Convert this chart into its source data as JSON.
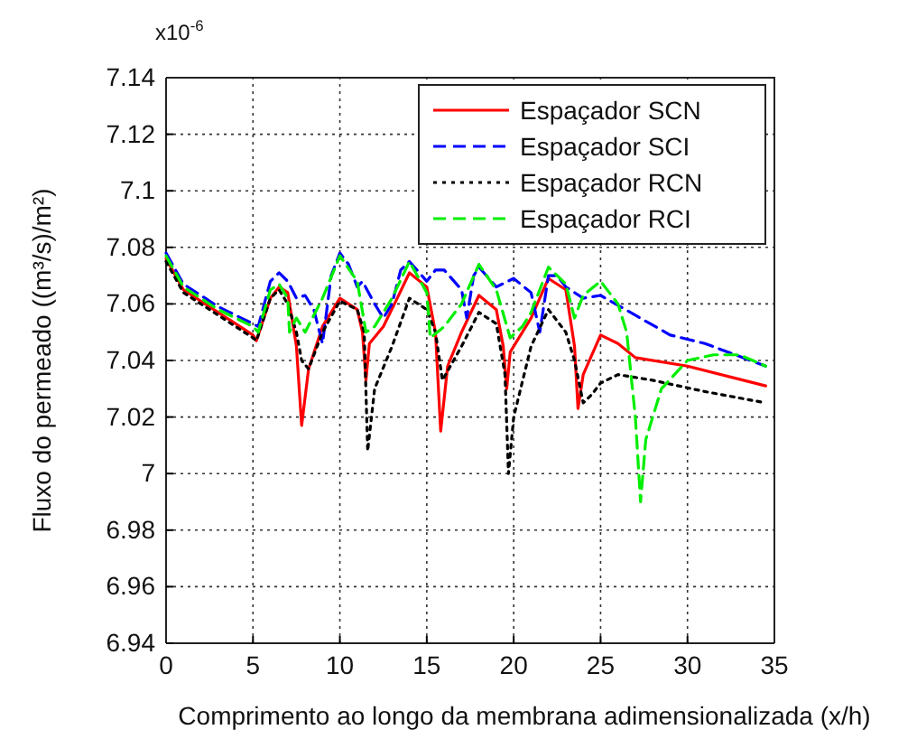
{
  "chart_data": {
    "type": "line",
    "xlabel": "Comprimento ao longo da membrana adimensionalizada (x/h)",
    "ylabel": "Fluxo do permeado ((m³/s)/m²)",
    "annotations": [
      "x10$^{-6}$"
    ],
    "xlim": [
      0,
      35
    ],
    "xticks": [
      0,
      5,
      10,
      15,
      20,
      25,
      30,
      35
    ],
    "ylim": [
      6.94,
      7.14
    ],
    "yticks": [
      6.94,
      6.96,
      6.98,
      7,
      7.02,
      7.04,
      7.06,
      7.08,
      7.1,
      7.12,
      7.14
    ],
    "grid": true,
    "legend": "top right",
    "marker": "none",
    "series": [
      {
        "name": "Espaçador SCN",
        "color": "#ff0000",
        "line_style": "solid",
        "x": [
          0,
          1,
          3,
          5,
          5.2,
          6,
          6.5,
          7,
          7.5,
          7.8,
          8.2,
          9,
          10,
          11,
          11.3,
          11.5,
          11.7,
          12.5,
          13.3,
          14,
          15,
          15.5,
          15.8,
          16.2,
          17,
          18,
          19,
          19.4,
          19.6,
          19.8,
          21,
          22,
          23,
          23.5,
          23.7,
          24,
          25,
          26,
          27,
          30,
          34.5
        ],
        "values": [
          7.076,
          7.065,
          7.057,
          7.049,
          7.047,
          7.062,
          7.066,
          7.064,
          7.045,
          7.017,
          7.037,
          7.052,
          7.062,
          7.058,
          7.05,
          7.033,
          7.046,
          7.052,
          7.062,
          7.071,
          7.066,
          7.05,
          7.015,
          7.038,
          7.05,
          7.063,
          7.058,
          7.045,
          7.03,
          7.043,
          7.055,
          7.069,
          7.065,
          7.045,
          7.023,
          7.035,
          7.049,
          7.046,
          7.041,
          7.038,
          7.031
        ]
      },
      {
        "name": "Espaçador SCI",
        "color": "#0000ff",
        "line_style": "dashed",
        "x": [
          0,
          1,
          3,
          5,
          5.3,
          6,
          6.5,
          7,
          7.5,
          8,
          8.5,
          9,
          9.5,
          10,
          10.5,
          11,
          11.3,
          12,
          12.5,
          13,
          13.5,
          14,
          15,
          15.5,
          16,
          17,
          17.3,
          17.7,
          18,
          19,
          20,
          21,
          21.5,
          22,
          22.5,
          23,
          24,
          25,
          27,
          29,
          31,
          34.5
        ],
        "values": [
          7.078,
          7.067,
          7.059,
          7.053,
          7.052,
          7.068,
          7.071,
          7.068,
          7.062,
          7.063,
          7.058,
          7.046,
          7.07,
          7.078,
          7.074,
          7.066,
          7.068,
          7.06,
          7.055,
          7.06,
          7.072,
          7.075,
          7.068,
          7.072,
          7.072,
          7.065,
          7.055,
          7.07,
          7.073,
          7.066,
          7.069,
          7.064,
          7.05,
          7.07,
          7.07,
          7.066,
          7.062,
          7.063,
          7.056,
          7.049,
          7.046,
          7.038
        ]
      },
      {
        "name": "Espaçador RCN",
        "color": "#000000",
        "line_style": "dotted",
        "x": [
          0,
          1,
          3,
          5,
          5.2,
          6,
          6.5,
          7,
          7.5,
          7.8,
          8.2,
          9,
          10,
          11,
          11.4,
          11.6,
          12,
          13,
          14,
          15,
          15.5,
          15.9,
          17,
          18,
          19,
          19.5,
          19.7,
          20,
          21,
          22,
          23,
          23.5,
          24,
          24.5,
          25,
          26,
          28,
          31,
          34.5
        ],
        "values": [
          7.075,
          7.064,
          7.056,
          7.048,
          7.047,
          7.062,
          7.065,
          7.06,
          7.05,
          7.04,
          7.037,
          7.05,
          7.061,
          7.058,
          7.05,
          7.008,
          7.03,
          7.045,
          7.062,
          7.058,
          7.05,
          7.033,
          7.045,
          7.057,
          7.053,
          7.035,
          7,
          7.02,
          7.045,
          7.058,
          7.05,
          7.04,
          7.025,
          7.028,
          7.032,
          7.035,
          7.033,
          7.029,
          7.025
        ]
      },
      {
        "name": "Espaçador RCI",
        "color": "#00ee00",
        "line_style": "dashed",
        "x": [
          0,
          1,
          3,
          5,
          5.3,
          6,
          6.5,
          7,
          7.1,
          7.5,
          8,
          9,
          10,
          11,
          11.5,
          12,
          13,
          14,
          15,
          15.2,
          16,
          17,
          18,
          19,
          19.8,
          20.5,
          21,
          22,
          23,
          23.5,
          24,
          25,
          26,
          26.5,
          27,
          27.3,
          27.6,
          28.5,
          30,
          31.5,
          33,
          34.5
        ],
        "values": [
          7.077,
          7.066,
          7.058,
          7.052,
          7.05,
          7.065,
          7.067,
          7.062,
          7.05,
          7.055,
          7.05,
          7.062,
          7.077,
          7.068,
          7.05,
          7.052,
          7.062,
          7.075,
          7.064,
          7.048,
          7.052,
          7.06,
          7.074,
          7.065,
          7.048,
          7.052,
          7.057,
          7.073,
          7.067,
          7.055,
          7.063,
          7.068,
          7.06,
          7.05,
          7.02,
          6.99,
          7.012,
          7.03,
          7.04,
          7.042,
          7.042,
          7.038
        ]
      }
    ]
  }
}
